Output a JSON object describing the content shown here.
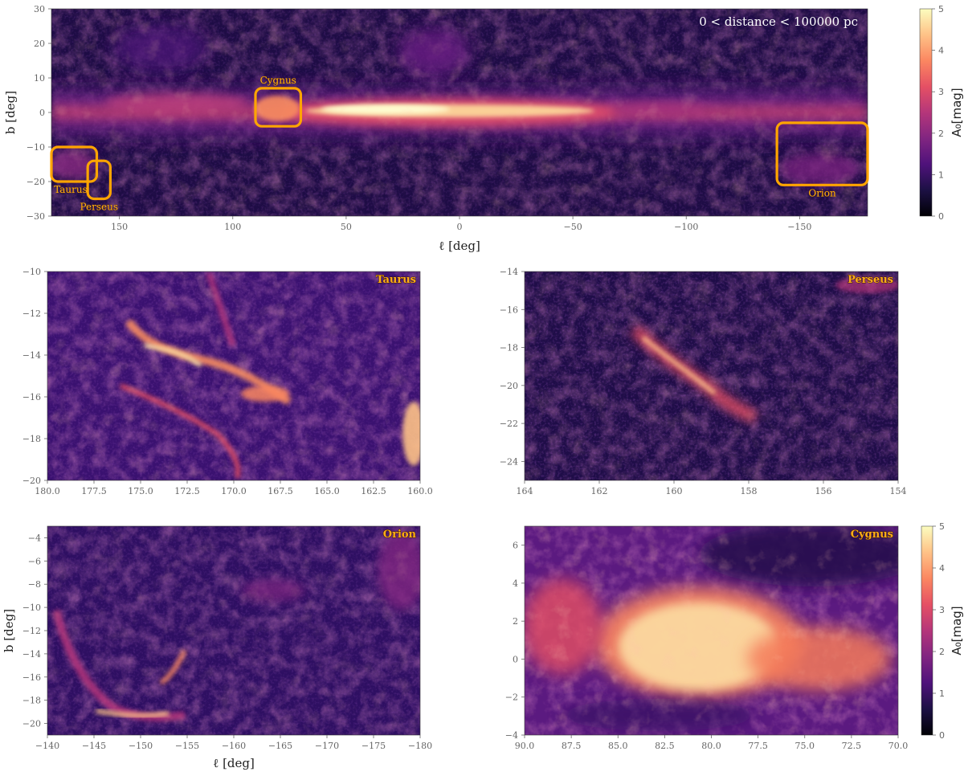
{
  "colors": {
    "box": "#ffa500",
    "region_text": "#ffae19",
    "colormap": [
      "#000004",
      "#1c1044",
      "#4f127b",
      "#812581",
      "#b5367a",
      "#e55064",
      "#fb8761",
      "#fec287",
      "#fcfdbf"
    ]
  },
  "colorbar": {
    "label": "A₀[mag]",
    "ticks": [
      "0",
      "1",
      "2",
      "3",
      "4",
      "5"
    ],
    "range": [
      0,
      5
    ]
  },
  "chart_data": [
    {
      "id": "all-sky",
      "type": "heatmap",
      "title": "",
      "annotation": "0 < distance < 100000 pc",
      "xlabel": "ℓ [deg]",
      "ylabel": "b [deg]",
      "xlim": [
        180,
        -180
      ],
      "ylim": [
        -30,
        30
      ],
      "xticks": [
        150,
        100,
        50,
        0,
        -50,
        -100,
        -150
      ],
      "xtick_labels": [
        "150",
        "100",
        "50",
        "0",
        "−50",
        "−100",
        "−150"
      ],
      "yticks": [
        30,
        20,
        10,
        0,
        -10,
        -20,
        -30
      ],
      "ytick_labels": [
        "30",
        "20",
        "10",
        "0",
        "−10",
        "−20",
        "−30"
      ],
      "colorbar": true,
      "regions": [
        {
          "name": "Cygnus",
          "l": [
            90,
            70
          ],
          "b": [
            -4,
            7
          ]
        },
        {
          "name": "Taurus",
          "l": [
            180,
            160
          ],
          "b": [
            -20,
            -10
          ]
        },
        {
          "name": "Perseus",
          "l": [
            164,
            154
          ],
          "b": [
            -25,
            -14
          ]
        },
        {
          "name": "Orion",
          "l": [
            -140,
            -180
          ],
          "b": [
            -21,
            -3
          ]
        }
      ]
    },
    {
      "id": "taurus",
      "type": "heatmap",
      "label": "Taurus",
      "xlabel": "",
      "ylabel": "",
      "xlim": [
        180,
        160
      ],
      "ylim": [
        -20,
        -10
      ],
      "xticks": [
        180,
        177.5,
        175,
        172.5,
        170,
        167.5,
        165,
        162.5,
        160
      ],
      "xtick_labels": [
        "180.0",
        "177.5",
        "175.0",
        "172.5",
        "170.0",
        "167.5",
        "165.0",
        "162.5",
        "160.0"
      ],
      "yticks": [
        -10,
        -12,
        -14,
        -16,
        -18,
        -20
      ],
      "ytick_labels": [
        "−10",
        "−12",
        "−14",
        "−16",
        "−18",
        "−20"
      ]
    },
    {
      "id": "perseus",
      "type": "heatmap",
      "label": "Perseus",
      "xlabel": "",
      "ylabel": "",
      "xlim": [
        164,
        154
      ],
      "ylim": [
        -25,
        -14
      ],
      "xticks": [
        164,
        162,
        160,
        158,
        156,
        154
      ],
      "xtick_labels": [
        "164",
        "162",
        "160",
        "158",
        "156",
        "154"
      ],
      "yticks": [
        -14,
        -16,
        -18,
        -20,
        -22,
        -24
      ],
      "ytick_labels": [
        "−14",
        "−16",
        "−18",
        "−20",
        "−22",
        "−24"
      ]
    },
    {
      "id": "orion",
      "type": "heatmap",
      "label": "Orion",
      "xlabel": "ℓ [deg]",
      "ylabel": "b [deg]",
      "xlim": [
        -140,
        -180
      ],
      "ylim": [
        -21,
        -3
      ],
      "xticks": [
        -140,
        -145,
        -150,
        -155,
        -160,
        -165,
        -170,
        -175,
        -180
      ],
      "xtick_labels": [
        "−140",
        "−145",
        "−150",
        "−155",
        "−160",
        "−165",
        "−170",
        "−175",
        "−180"
      ],
      "yticks": [
        -4,
        -6,
        -8,
        -10,
        -12,
        -14,
        -16,
        -18,
        -20
      ],
      "ytick_labels": [
        "−4",
        "−6",
        "−8",
        "−10",
        "−12",
        "−14",
        "−16",
        "−18",
        "−20"
      ]
    },
    {
      "id": "cygnus",
      "type": "heatmap",
      "label": "Cygnus",
      "xlabel": "",
      "ylabel": "",
      "xlim": [
        90,
        70
      ],
      "ylim": [
        -4,
        7
      ],
      "xticks": [
        90,
        87.5,
        85,
        82.5,
        80,
        77.5,
        75,
        72.5,
        70
      ],
      "xtick_labels": [
        "90.0",
        "87.5",
        "85.0",
        "82.5",
        "80.0",
        "77.5",
        "75.0",
        "72.5",
        "70.0"
      ],
      "yticks": [
        6,
        4,
        2,
        0,
        -2,
        -4
      ],
      "ytick_labels": [
        "6",
        "4",
        "2",
        "0",
        "−2",
        "−4"
      ],
      "colorbar": true
    }
  ]
}
